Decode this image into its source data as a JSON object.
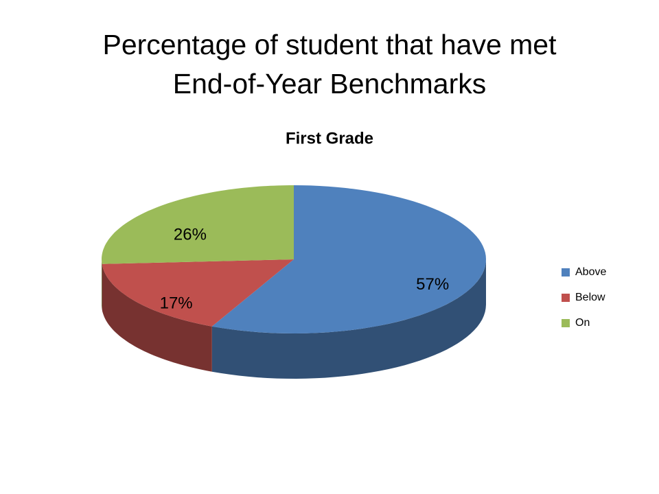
{
  "slide": {
    "title_lines": [
      "Percentage of student that have met",
      "End-of-Year Benchmarks"
    ]
  },
  "chart_data": {
    "type": "pie",
    "title": "First Grade",
    "categories": [
      "Above",
      "Below",
      "On"
    ],
    "values": [
      57,
      17,
      26
    ],
    "value_labels": [
      "57%",
      "17%",
      "26%"
    ],
    "colors": [
      "#4f81bd",
      "#c0504d",
      "#9bbb59"
    ],
    "legend": "right"
  }
}
